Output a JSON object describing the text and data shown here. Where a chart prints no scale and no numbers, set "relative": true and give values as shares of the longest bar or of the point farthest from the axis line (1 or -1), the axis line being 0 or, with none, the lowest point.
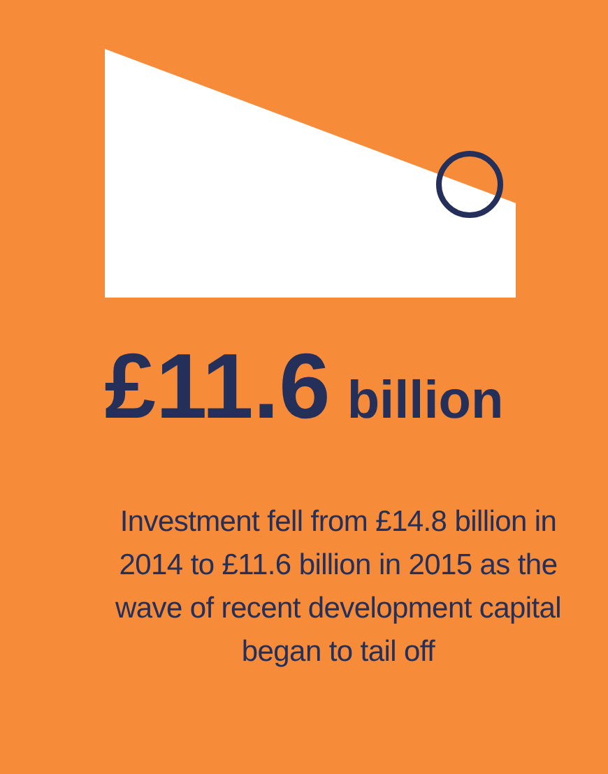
{
  "chart_data": {
    "type": "area",
    "relative": true,
    "categories": [
      null,
      null
    ],
    "values": [
      1,
      0.38
    ],
    "color": "#ffffff",
    "title": "£11.6",
    "subtitle": "billion",
    "annotations": [
      "Investment fell from £14.8 billion in 2014 to £11.6 billion in 2015 as the wave of recent development capital began to tail off"
    ]
  }
}
